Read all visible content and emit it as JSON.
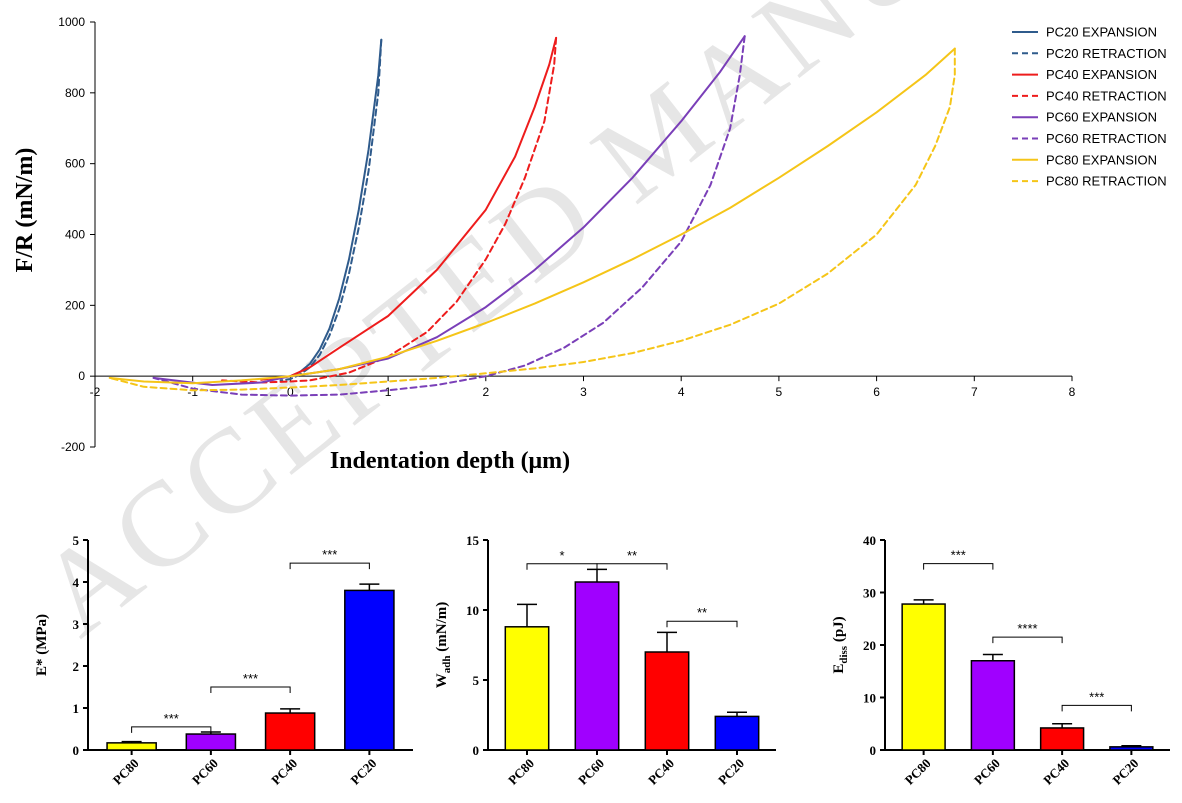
{
  "watermark": "ACCEPTED MANUSCRIPT",
  "chart_data": [
    {
      "type": "line",
      "xlabel": "Indentation depth (μm)",
      "ylabel": "F/R (mN/m)",
      "xlim": [
        -2,
        8
      ],
      "ylim": [
        -200,
        1000
      ],
      "xticks": [
        "-2",
        "-1",
        "0",
        "1",
        "2",
        "3",
        "4",
        "5",
        "6",
        "7",
        "8"
      ],
      "yticks": [
        "-200",
        "0",
        "200",
        "400",
        "600",
        "800",
        "1000"
      ],
      "legend_position": "top-right",
      "series": [
        {
          "name": "PC20 EXPANSION",
          "color": "#2f5b8c",
          "dash": false,
          "x": [
            0,
            0.1,
            0.2,
            0.3,
            0.4,
            0.5,
            0.6,
            0.7,
            0.8,
            0.9,
            0.93
          ],
          "y": [
            0,
            12,
            35,
            75,
            135,
            220,
            330,
            470,
            640,
            850,
            950
          ]
        },
        {
          "name": "PC20 RETRACTION",
          "color": "#2f5b8c",
          "dash": true,
          "x": [
            0.93,
            0.9,
            0.8,
            0.7,
            0.6,
            0.5,
            0.4,
            0.3,
            0.2,
            0.1,
            0.0,
            -0.1
          ],
          "y": [
            950,
            800,
            580,
            420,
            290,
            190,
            115,
            60,
            25,
            5,
            -8,
            -12
          ]
        },
        {
          "name": "PC40 EXPANSION",
          "color": "#ee1c1c",
          "dash": false,
          "x": [
            -0.3,
            0,
            0.2,
            0.5,
            1.0,
            1.5,
            2.0,
            2.3,
            2.5,
            2.65,
            2.72
          ],
          "y": [
            -10,
            0,
            25,
            80,
            170,
            300,
            470,
            620,
            760,
            880,
            955
          ]
        },
        {
          "name": "PC40 RETRACTION",
          "color": "#ee1c1c",
          "dash": true,
          "x": [
            2.72,
            2.7,
            2.6,
            2.4,
            2.2,
            2.0,
            1.7,
            1.4,
            1.0,
            0.6,
            0.2,
            0,
            -0.3,
            -0.7
          ],
          "y": [
            955,
            880,
            720,
            560,
            430,
            330,
            210,
            125,
            55,
            10,
            -12,
            -15,
            -18,
            -12
          ]
        },
        {
          "name": "PC60 EXPANSION",
          "color": "#7a3fb8",
          "dash": false,
          "x": [
            -1.4,
            -0.8,
            -0.3,
            0,
            0.5,
            1.0,
            1.5,
            2.0,
            2.5,
            3.0,
            3.5,
            4.0,
            4.4,
            4.65
          ],
          "y": [
            -5,
            -25,
            -18,
            0,
            20,
            50,
            110,
            195,
            300,
            420,
            560,
            720,
            860,
            960
          ]
        },
        {
          "name": "PC60 RETRACTION",
          "color": "#7a3fb8",
          "dash": true,
          "x": [
            4.65,
            4.6,
            4.5,
            4.3,
            4.0,
            3.6,
            3.2,
            2.8,
            2.4,
            2.0,
            1.5,
            1.0,
            0.5,
            0,
            -0.5,
            -1.0,
            -1.4
          ],
          "y": [
            960,
            850,
            700,
            540,
            380,
            250,
            150,
            80,
            30,
            0,
            -25,
            -40,
            -52,
            -55,
            -52,
            -35,
            -5
          ]
        },
        {
          "name": "PC80 EXPANSION",
          "color": "#f5c518",
          "dash": false,
          "x": [
            -1.85,
            -1.5,
            -1.0,
            -0.5,
            0,
            0.5,
            1.0,
            1.5,
            2.0,
            2.5,
            3.0,
            3.5,
            4.0,
            4.5,
            5.0,
            5.5,
            6.0,
            6.5,
            6.8
          ],
          "y": [
            -5,
            -15,
            -20,
            -12,
            0,
            20,
            55,
            100,
            150,
            205,
            265,
            330,
            400,
            475,
            560,
            650,
            745,
            850,
            925
          ]
        },
        {
          "name": "PC80 RETRACTION",
          "color": "#f5c518",
          "dash": true,
          "x": [
            6.8,
            6.8,
            6.75,
            6.6,
            6.4,
            6.0,
            5.5,
            5.0,
            4.5,
            4.0,
            3.5,
            3.0,
            2.5,
            2.0,
            1.5,
            1.0,
            0.5,
            0,
            -0.5,
            -1.0,
            -1.5,
            -1.85
          ],
          "y": [
            925,
            850,
            760,
            650,
            540,
            400,
            290,
            205,
            145,
            100,
            65,
            40,
            22,
            8,
            -5,
            -15,
            -25,
            -32,
            -38,
            -40,
            -30,
            -5
          ]
        }
      ]
    },
    {
      "type": "bar",
      "categories": [
        "PC80",
        "PC60",
        "PC40",
        "PC20"
      ],
      "values": [
        0.17,
        0.38,
        0.88,
        3.8
      ],
      "errors": [
        0.03,
        0.05,
        0.1,
        0.15
      ],
      "colors": [
        "#ffff00",
        "#a000ff",
        "#ff0000",
        "#0000ff"
      ],
      "ylabel_main": "E* (MPa)",
      "ylabel_sub": "",
      "ylim": [
        0,
        5
      ],
      "yticks": [
        "0",
        "1",
        "2",
        "3",
        "4",
        "5"
      ],
      "significance": [
        {
          "from": 0,
          "to": 1,
          "label": "***",
          "y": 0.55
        },
        {
          "from": 1,
          "to": 2,
          "label": "***",
          "y": 1.5
        },
        {
          "from": 2,
          "to": 3,
          "label": "***",
          "y": 4.45
        }
      ]
    },
    {
      "type": "bar",
      "categories": [
        "PC80",
        "PC60",
        "PC40",
        "PC20"
      ],
      "values": [
        8.8,
        12.0,
        7.0,
        2.4
      ],
      "errors": [
        1.6,
        0.9,
        1.4,
        0.3
      ],
      "colors": [
        "#ffff00",
        "#a000ff",
        "#ff0000",
        "#0000ff"
      ],
      "ylabel_main": "W",
      "ylabel_sub": "adh",
      "ylabel_tail": " (mN/m)",
      "ylim": [
        0,
        15
      ],
      "yticks": [
        "0",
        "5",
        "10",
        "15"
      ],
      "significance": [
        {
          "from": 0,
          "to": 1,
          "label": "*",
          "y": 13.3
        },
        {
          "from": 1,
          "to": 2,
          "label": "**",
          "y": 13.3
        },
        {
          "from": 2,
          "to": 3,
          "label": "**",
          "y": 9.2
        }
      ]
    },
    {
      "type": "bar",
      "categories": [
        "PC80",
        "PC60",
        "PC40",
        "PC20"
      ],
      "values": [
        27.8,
        17.0,
        4.2,
        0.6
      ],
      "errors": [
        0.8,
        1.2,
        0.8,
        0.2
      ],
      "colors": [
        "#ffff00",
        "#a000ff",
        "#ff0000",
        "#0000ff"
      ],
      "ylabel_main": "E",
      "ylabel_sub": "diss",
      "ylabel_tail": " (pJ)",
      "ylim": [
        0,
        40
      ],
      "yticks": [
        "0",
        "10",
        "20",
        "30",
        "40"
      ],
      "significance": [
        {
          "from": 0,
          "to": 1,
          "label": "***",
          "y": 35.5
        },
        {
          "from": 1,
          "to": 2,
          "label": "****",
          "y": 21.5
        },
        {
          "from": 2,
          "to": 3,
          "label": "***",
          "y": 8.5
        }
      ]
    }
  ]
}
